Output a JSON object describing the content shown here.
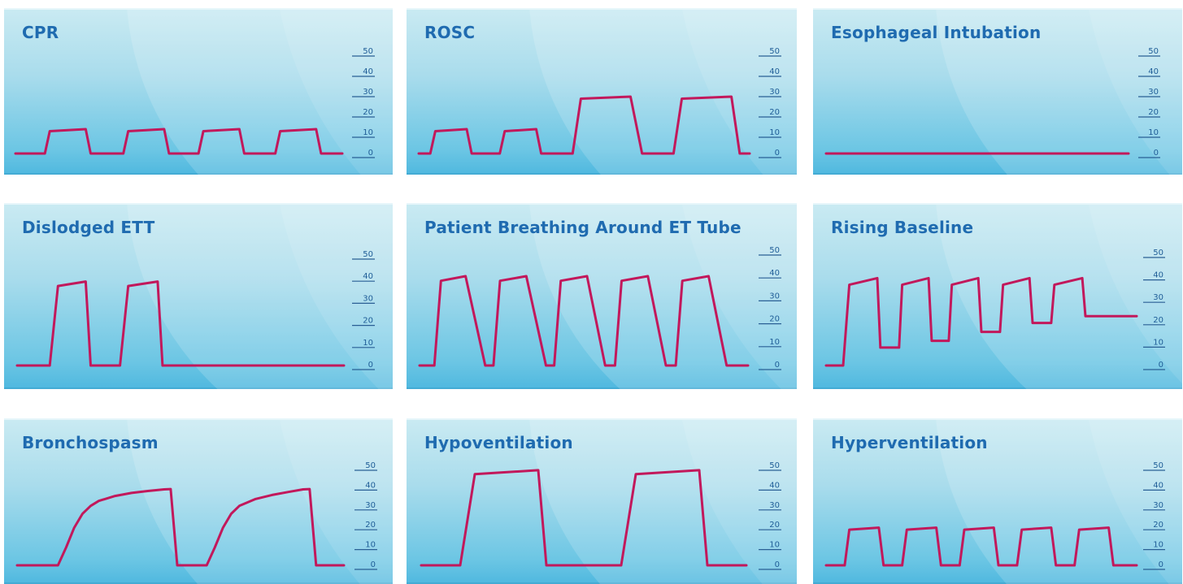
{
  "colors": {
    "trace": "#c2185b",
    "title": "#1f6bb0",
    "panel_light": "#c9eaf2",
    "panel_dark": "#4fb8df",
    "axis": "#2a5f95"
  },
  "chart_data": [
    {
      "type": "line",
      "title": "CPR",
      "ylim": [
        0,
        50
      ],
      "yticks": [
        "50",
        "40",
        "30",
        "20",
        "10",
        "0"
      ],
      "series": [
        {
          "x": [
            0,
            0.09,
            0.105,
            0.215,
            0.23,
            0.33,
            0.345,
            0.455,
            0.47,
            0.56,
            0.575,
            0.685,
            0.7,
            0.795,
            0.81,
            0.92,
            0.935,
            1.0
          ],
          "y": [
            0,
            0,
            11,
            12,
            0,
            0,
            11,
            12,
            0,
            0,
            11,
            12,
            0,
            0,
            11,
            12,
            0,
            0
          ]
        }
      ]
    },
    {
      "type": "line",
      "title": "ROSC",
      "ylim": [
        0,
        50
      ],
      "yticks": [
        "50",
        "40",
        "30",
        "20",
        "10",
        "0"
      ],
      "series": [
        {
          "x": [
            0,
            0.035,
            0.05,
            0.145,
            0.16,
            0.245,
            0.26,
            0.355,
            0.37,
            0.465,
            0.49,
            0.64,
            0.675,
            0.77,
            0.795,
            0.945,
            0.97,
            1.0
          ],
          "y": [
            0,
            0,
            11,
            12,
            0,
            0,
            11,
            12,
            0,
            0,
            27,
            28,
            0,
            0,
            27,
            28,
            0,
            0
          ]
        }
      ]
    },
    {
      "type": "line",
      "title": "Esophageal Intubation",
      "ylim": [
        0,
        50
      ],
      "yticks": [
        "50",
        "40",
        "30",
        "20",
        "10",
        "0"
      ],
      "series": [
        {
          "x": [
            0,
            1.0
          ],
          "y": [
            0,
            0
          ]
        }
      ]
    },
    {
      "type": "line",
      "title": "Dislodged ETT",
      "ylim": [
        0,
        50
      ],
      "yticks": [
        "50",
        "40",
        "30",
        "20",
        "10",
        "0"
      ],
      "series": [
        {
          "x": [
            0,
            0.1,
            0.125,
            0.21,
            0.225,
            0.315,
            0.34,
            0.43,
            0.445,
            1.0
          ],
          "y": [
            0,
            0,
            36,
            38,
            0,
            0,
            36,
            38,
            0,
            0
          ]
        }
      ]
    },
    {
      "type": "line",
      "title": "Patient Breathing Around ET Tube",
      "ylim": [
        0,
        50
      ],
      "yticks": [
        "50",
        "40",
        "30",
        "20",
        "10",
        "0"
      ],
      "series": [
        {
          "x": [
            0,
            0.045,
            0.065,
            0.14,
            0.2,
            0.225,
            0.245,
            0.325,
            0.385,
            0.41,
            0.43,
            0.51,
            0.565,
            0.595,
            0.615,
            0.695,
            0.75,
            0.78,
            0.8,
            0.88,
            0.935,
            0.96,
            1.0
          ],
          "y": [
            0,
            0,
            37,
            39,
            0,
            0,
            37,
            39,
            0,
            0,
            37,
            39,
            0,
            0,
            37,
            39,
            0,
            0,
            37,
            39,
            0,
            0,
            0
          ]
        }
      ]
    },
    {
      "type": "line",
      "title": "Rising Baseline",
      "ylim": [
        0,
        50
      ],
      "yticks": [
        "50",
        "40",
        "30",
        "20",
        "10",
        "0"
      ],
      "series": [
        {
          "x": [
            0,
            0.055,
            0.075,
            0.165,
            0.175,
            0.235,
            0.245,
            0.33,
            0.34,
            0.395,
            0.405,
            0.49,
            0.5,
            0.56,
            0.57,
            0.655,
            0.665,
            0.725,
            0.735,
            0.825,
            0.835,
            0.89,
            0.9,
            1.0
          ],
          "y": [
            0,
            0,
            36,
            39,
            8,
            8,
            36,
            39,
            11,
            11,
            36,
            39,
            15,
            15,
            36,
            39,
            19,
            19,
            36,
            39,
            22,
            22,
            22,
            22
          ]
        }
      ]
    },
    {
      "type": "line",
      "title": "Bronchospasm",
      "ylim": [
        0,
        50
      ],
      "yticks": [
        "50",
        "40",
        "30",
        "20",
        "10",
        "0"
      ],
      "series": [
        {
          "x": [
            0,
            0.125,
            0.15,
            0.175,
            0.2,
            0.225,
            0.25,
            0.3,
            0.35,
            0.4,
            0.45,
            0.47,
            0.49,
            0.58,
            0.605,
            0.63,
            0.655,
            0.68,
            0.73,
            0.78,
            0.83,
            0.875,
            0.895,
            0.915,
            1.0
          ],
          "y": [
            0,
            0,
            9,
            19,
            26,
            30,
            32.5,
            35,
            36.5,
            37.5,
            38.3,
            38.5,
            0,
            0,
            9,
            19,
            26,
            30,
            33.5,
            35.5,
            37,
            38.3,
            38.5,
            0,
            0
          ]
        }
      ]
    },
    {
      "type": "line",
      "title": "Hypoventilation",
      "ylim": [
        0,
        50
      ],
      "yticks": [
        "50",
        "40",
        "30",
        "20",
        "10",
        "0"
      ],
      "series": [
        {
          "x": [
            0,
            0.12,
            0.165,
            0.36,
            0.385,
            0.615,
            0.66,
            0.855,
            0.88,
            1.0
          ],
          "y": [
            0,
            0,
            46,
            48,
            0,
            0,
            46,
            48,
            0,
            0
          ]
        }
      ]
    },
    {
      "type": "line",
      "title": "Hyperventilation",
      "ylim": [
        0,
        50
      ],
      "yticks": [
        "50",
        "40",
        "30",
        "20",
        "10",
        "0"
      ],
      "series": [
        {
          "x": [
            0,
            0.06,
            0.075,
            0.17,
            0.185,
            0.245,
            0.26,
            0.355,
            0.37,
            0.43,
            0.445,
            0.54,
            0.555,
            0.615,
            0.63,
            0.725,
            0.74,
            0.8,
            0.815,
            0.91,
            0.925,
            1.0
          ],
          "y": [
            0,
            0,
            18,
            19,
            0,
            0,
            18,
            19,
            0,
            0,
            18,
            19,
            0,
            0,
            18,
            19,
            0,
            0,
            18,
            19,
            0,
            0
          ]
        }
      ]
    }
  ]
}
